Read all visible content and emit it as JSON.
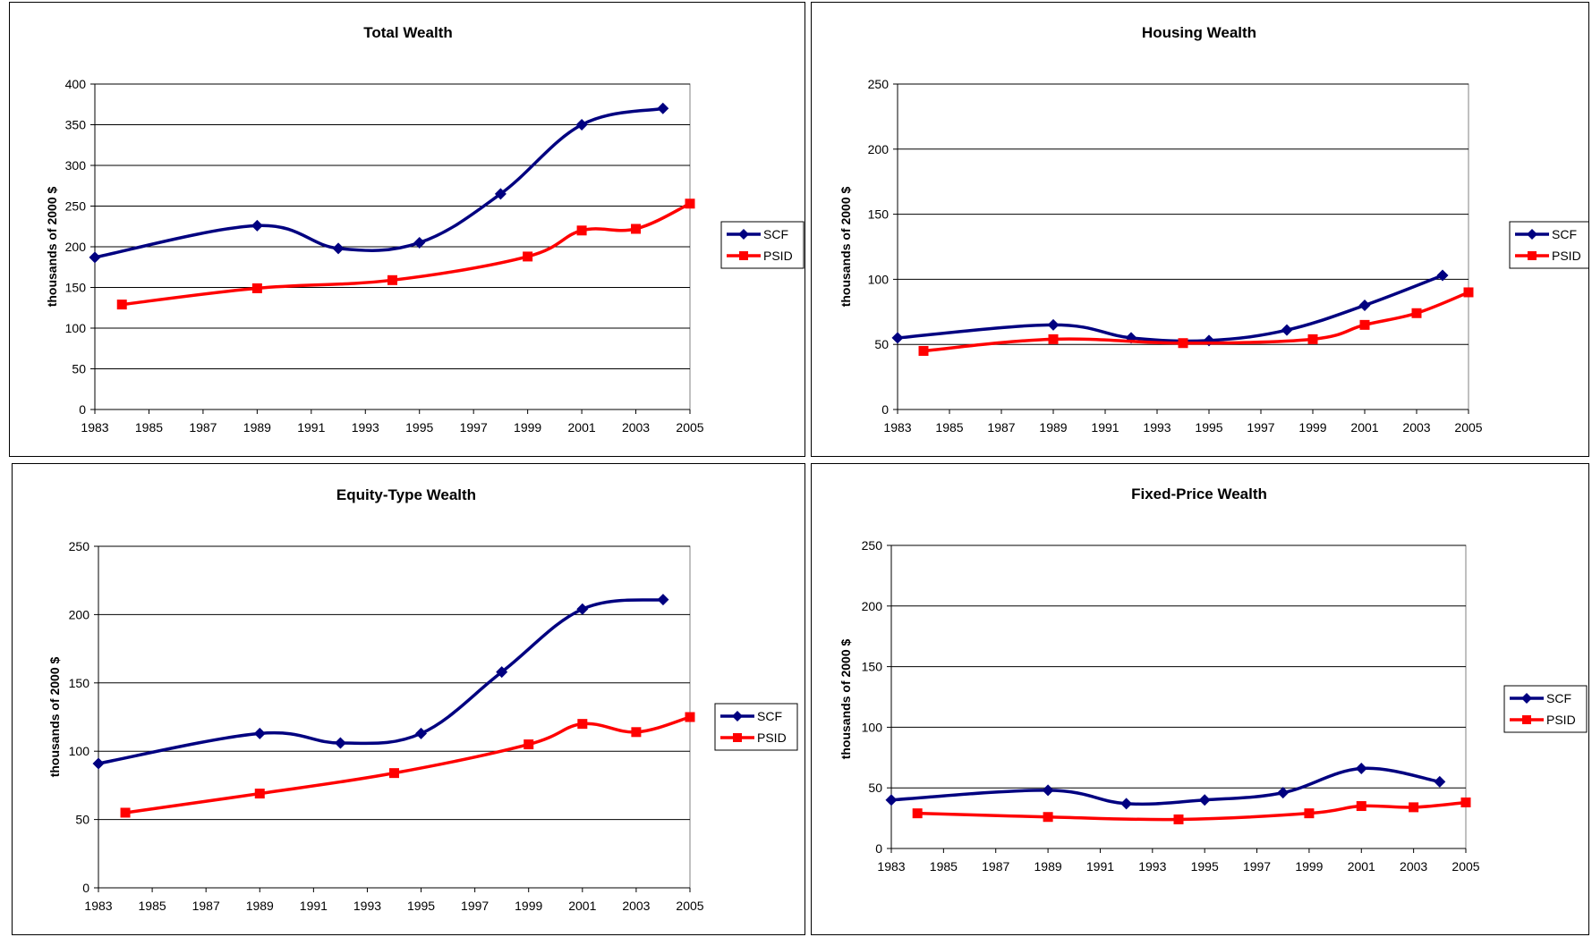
{
  "colors": {
    "scf": "#000080",
    "psid": "#ff0000",
    "grid": "#000000",
    "axis": "#808080"
  },
  "chart_data": [
    {
      "type": "line",
      "title": "Total Wealth",
      "ylabel": "thousands of 2000 $",
      "xlabel": "",
      "xlim": [
        1983,
        2005
      ],
      "ylim": [
        0,
        400
      ],
      "xticks": [
        "1983",
        "1985",
        "1987",
        "1989",
        "1991",
        "1993",
        "1995",
        "1997",
        "1999",
        "2001",
        "2003",
        "2005"
      ],
      "yticks": [
        "0",
        "50",
        "100",
        "150",
        "200",
        "250",
        "300",
        "350",
        "400"
      ],
      "grid": true,
      "legend": "right",
      "series": [
        {
          "name": "SCF",
          "marker": "diamond",
          "x": [
            1983,
            1989,
            1992,
            1995,
            1998,
            2001,
            2004
          ],
          "y": [
            187,
            226,
            198,
            205,
            265,
            350,
            370
          ]
        },
        {
          "name": "PSID",
          "marker": "square",
          "x": [
            1984,
            1989,
            1994,
            1999,
            2001,
            2003,
            2005
          ],
          "y": [
            129,
            149,
            159,
            188,
            220,
            222,
            253
          ]
        }
      ]
    },
    {
      "type": "line",
      "title": "Housing Wealth",
      "ylabel": "thousands of 2000 $",
      "xlabel": "",
      "xlim": [
        1983,
        2005
      ],
      "ylim": [
        0,
        250
      ],
      "xticks": [
        "1983",
        "1985",
        "1987",
        "1989",
        "1991",
        "1993",
        "1995",
        "1997",
        "1999",
        "2001",
        "2003",
        "2005"
      ],
      "yticks": [
        "0",
        "50",
        "100",
        "150",
        "200",
        "250"
      ],
      "grid": true,
      "legend": "right",
      "series": [
        {
          "name": "SCF",
          "marker": "diamond",
          "x": [
            1983,
            1989,
            1992,
            1995,
            1998,
            2001,
            2004
          ],
          "y": [
            55,
            65,
            55,
            53,
            61,
            80,
            103
          ]
        },
        {
          "name": "PSID",
          "marker": "square",
          "x": [
            1984,
            1989,
            1994,
            1999,
            2001,
            2003,
            2005
          ],
          "y": [
            45,
            54,
            51,
            54,
            65,
            74,
            90
          ]
        }
      ]
    },
    {
      "type": "line",
      "title": "Equity-Type Wealth",
      "ylabel": "thousands of 2000 $",
      "xlabel": "",
      "xlim": [
        1983,
        2005
      ],
      "ylim": [
        0,
        250
      ],
      "xticks": [
        "1983",
        "1985",
        "1987",
        "1989",
        "1991",
        "1993",
        "1995",
        "1997",
        "1999",
        "2001",
        "2003",
        "2005"
      ],
      "yticks": [
        "0",
        "50",
        "100",
        "150",
        "200",
        "250"
      ],
      "grid": true,
      "legend": "right",
      "series": [
        {
          "name": "SCF",
          "marker": "diamond",
          "x": [
            1983,
            1989,
            1992,
            1995,
            1998,
            2001,
            2004
          ],
          "y": [
            91,
            113,
            106,
            113,
            158,
            204,
            211
          ]
        },
        {
          "name": "PSID",
          "marker": "square",
          "x": [
            1984,
            1989,
            1994,
            1999,
            2001,
            2003,
            2005
          ],
          "y": [
            55,
            69,
            84,
            105,
            120,
            114,
            125
          ]
        }
      ]
    },
    {
      "type": "line",
      "title": "Fixed-Price Wealth",
      "ylabel": "thousands of 2000 $",
      "xlabel": "",
      "xlim": [
        1983,
        2005
      ],
      "ylim": [
        0,
        250
      ],
      "xticks": [
        "1983",
        "1985",
        "1987",
        "1989",
        "1991",
        "1993",
        "1995",
        "1997",
        "1999",
        "2001",
        "2003",
        "2005"
      ],
      "yticks": [
        "0",
        "50",
        "100",
        "150",
        "200",
        "250"
      ],
      "grid": true,
      "legend": "right",
      "series": [
        {
          "name": "SCF",
          "marker": "diamond",
          "x": [
            1983,
            1989,
            1992,
            1995,
            1998,
            2001,
            2004
          ],
          "y": [
            40,
            48,
            37,
            40,
            46,
            66,
            55
          ]
        },
        {
          "name": "PSID",
          "marker": "square",
          "x": [
            1984,
            1989,
            1994,
            1999,
            2001,
            2003,
            2005
          ],
          "y": [
            29,
            26,
            24,
            29,
            35,
            34,
            38
          ]
        }
      ]
    }
  ]
}
